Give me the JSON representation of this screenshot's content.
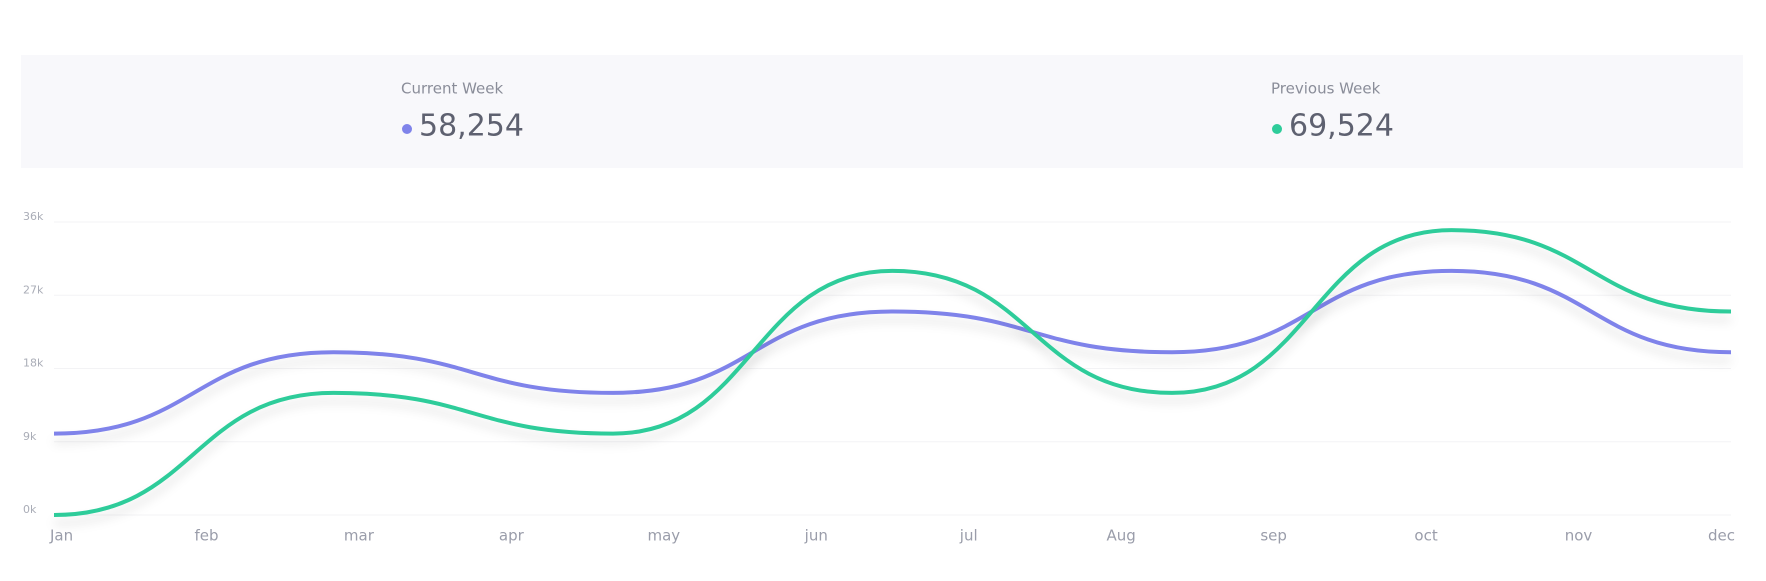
{
  "stats": [
    {
      "name": "Current Week",
      "value": "58,254",
      "color": "#7f83ea"
    },
    {
      "name": "Previous Week",
      "value": "69,524",
      "color": "#2ecc9a"
    }
  ],
  "chart_data": {
    "type": "line",
    "x": [
      0,
      1.8333,
      3.6667,
      5.5,
      7.3333,
      9.1667,
      11
    ],
    "series": [
      {
        "name": "Current Week",
        "color": "#7f83ea",
        "values": [
          10000,
          20000,
          15000,
          25000,
          20000,
          30000,
          20000
        ]
      },
      {
        "name": "Previous Week",
        "color": "#2ecc9a",
        "values": [
          0,
          15000,
          10000,
          30000,
          15000,
          35000,
          25000
        ]
      }
    ],
    "xlim": [
      0,
      11
    ],
    "xticks": [
      {
        "value": 0,
        "label": "Jan"
      },
      {
        "value": 1,
        "label": "feb"
      },
      {
        "value": 2,
        "label": "mar"
      },
      {
        "value": 3,
        "label": "apr"
      },
      {
        "value": 4,
        "label": "may"
      },
      {
        "value": 5,
        "label": "jun"
      },
      {
        "value": 6,
        "label": "jul"
      },
      {
        "value": 7,
        "label": "Aug"
      },
      {
        "value": 8,
        "label": "sep"
      },
      {
        "value": 9,
        "label": "oct"
      },
      {
        "value": 10,
        "label": "nov"
      },
      {
        "value": 11,
        "label": "dec"
      }
    ],
    "ylim": [
      0,
      36000
    ],
    "yticks": [
      {
        "value": 0,
        "label": "0k"
      },
      {
        "value": 9000,
        "label": "9k"
      },
      {
        "value": 18000,
        "label": "18k"
      },
      {
        "value": 27000,
        "label": "27k"
      },
      {
        "value": 36000,
        "label": "36k"
      }
    ],
    "grid": true
  }
}
